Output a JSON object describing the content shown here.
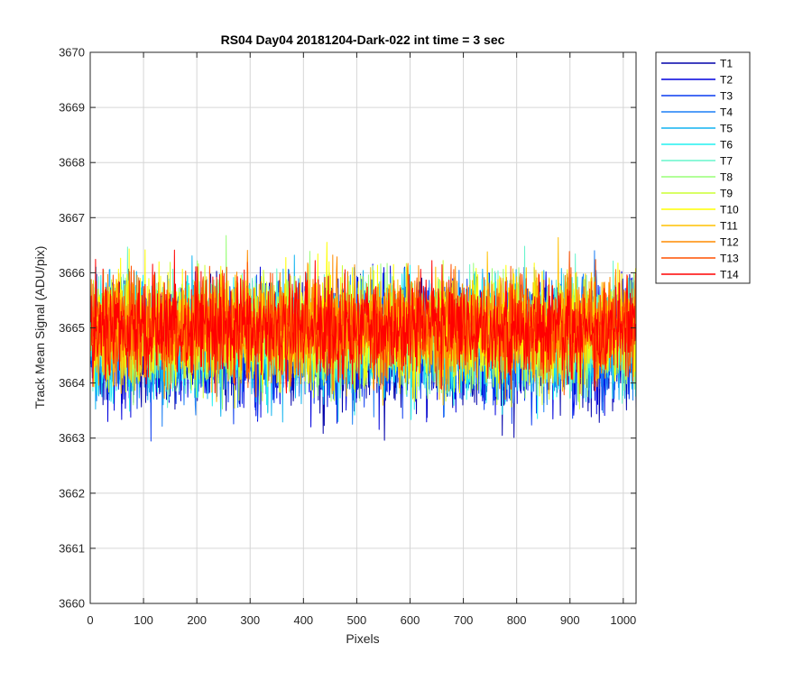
{
  "chart_data": {
    "type": "line",
    "title": "RS04 Day04 20181204-Dark-022 int time = 3 sec",
    "xlabel": "Pixels",
    "ylabel": "Track Mean Signal (ADU/pix)",
    "xlim": [
      0,
      1024
    ],
    "ylim": [
      3660,
      3670
    ],
    "x_ticks": [
      0,
      100,
      200,
      300,
      400,
      500,
      600,
      700,
      800,
      900,
      1000
    ],
    "y_ticks": [
      3660,
      3661,
      3662,
      3663,
      3664,
      3665,
      3666,
      3667,
      3668,
      3669,
      3670
    ],
    "grid": true,
    "legend_position": "outside-top-right",
    "n_points": 1024,
    "series": [
      {
        "name": "T1",
        "color": "#0000aa",
        "mean": 3664.6,
        "spread": 1.0
      },
      {
        "name": "T2",
        "color": "#0000dd",
        "mean": 3664.7,
        "spread": 1.0
      },
      {
        "name": "T3",
        "color": "#0a3cf0",
        "mean": 3664.7,
        "spread": 0.95
      },
      {
        "name": "T4",
        "color": "#1c7ff5",
        "mean": 3664.8,
        "spread": 0.95
      },
      {
        "name": "T5",
        "color": "#12b4f0",
        "mean": 3664.8,
        "spread": 0.95
      },
      {
        "name": "T6",
        "color": "#22f0f0",
        "mean": 3664.8,
        "spread": 0.95
      },
      {
        "name": "T7",
        "color": "#66f5cc",
        "mean": 3664.9,
        "spread": 0.9
      },
      {
        "name": "T8",
        "color": "#99ff77",
        "mean": 3664.9,
        "spread": 0.9
      },
      {
        "name": "T9",
        "color": "#ccff33",
        "mean": 3664.9,
        "spread": 0.9
      },
      {
        "name": "T10",
        "color": "#ffff00",
        "mean": 3665.0,
        "spread": 0.9
      },
      {
        "name": "T11",
        "color": "#ffc000",
        "mean": 3665.0,
        "spread": 0.85
      },
      {
        "name": "T12",
        "color": "#ff8c00",
        "mean": 3665.0,
        "spread": 0.85
      },
      {
        "name": "T13",
        "color": "#ff5000",
        "mean": 3665.0,
        "spread": 0.8
      },
      {
        "name": "T14",
        "color": "#ff0000",
        "mean": 3665.0,
        "spread": 0.8
      }
    ]
  }
}
